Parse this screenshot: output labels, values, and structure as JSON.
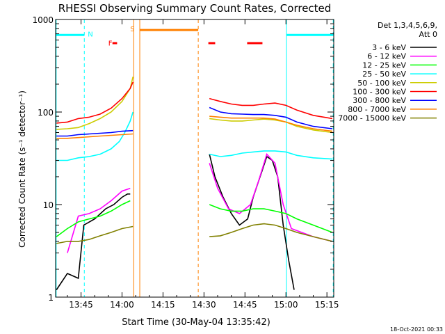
{
  "chart_data": {
    "type": "line",
    "title": "RHESSI Observing Summary Count Rates, Corrected",
    "xlabel": "Start Time (30-May-04 13:35:42)",
    "ylabel": "Corrected Count Rate (s⁻¹ detector⁻¹)",
    "yscale": "log",
    "xlim_min": [
      35.7,
      137.5
    ],
    "ylim": [
      1,
      1000
    ],
    "xticks": [
      {
        "label": "13:45",
        "x": 45
      },
      {
        "label": "14:00",
        "x": 60
      },
      {
        "label": "14:15",
        "x": 75
      },
      {
        "label": "14:30",
        "x": 90
      },
      {
        "label": "14:45",
        "x": 105
      },
      {
        "label": "15:00",
        "x": 120
      },
      {
        "label": "15:15",
        "x": 135
      }
    ],
    "yticks": [
      {
        "label": "1",
        "value": 1
      },
      {
        "label": "10",
        "value": 10
      },
      {
        "label": "100",
        "value": 100
      },
      {
        "label": "1000",
        "value": 1000
      }
    ],
    "legend": {
      "title_line1": "Det 1,3,4,5,6,9,",
      "title_line2": "Att 0",
      "placement": "right"
    },
    "series": [
      {
        "name": "3 - 6 keV",
        "color": "#000000",
        "points": [
          [
            36,
            1.2
          ],
          [
            40,
            1.8
          ],
          [
            44,
            1.6
          ],
          [
            46,
            6
          ],
          [
            50,
            7
          ],
          [
            54,
            9
          ],
          [
            57,
            10
          ],
          [
            60,
            12
          ],
          [
            62,
            13
          ],
          [
            63,
            13
          ],
          [
            null,
            null
          ],
          [
            92,
            35
          ],
          [
            94,
            20
          ],
          [
            97,
            12
          ],
          [
            100,
            8
          ],
          [
            103,
            6
          ],
          [
            106,
            7
          ],
          [
            108,
            12
          ],
          [
            111,
            22
          ],
          [
            113,
            33
          ],
          [
            115,
            30
          ],
          [
            117,
            20
          ],
          [
            119,
            6
          ],
          [
            121,
            2.5
          ],
          [
            123,
            1.2
          ]
        ]
      },
      {
        "name": "6 - 12 keV",
        "color": "#ff00ff",
        "points": [
          [
            40,
            3
          ],
          [
            44,
            7.5
          ],
          [
            48,
            8
          ],
          [
            52,
            9
          ],
          [
            56,
            11
          ],
          [
            60,
            14
          ],
          [
            63,
            15
          ],
          [
            null,
            null
          ],
          [
            92,
            28
          ],
          [
            95,
            15
          ],
          [
            99,
            9
          ],
          [
            103,
            8
          ],
          [
            107,
            10
          ],
          [
            110,
            18
          ],
          [
            113,
            35
          ],
          [
            116,
            28
          ],
          [
            119,
            10
          ],
          [
            122,
            5.5
          ],
          [
            130,
            4.5
          ],
          [
            137,
            4
          ]
        ]
      },
      {
        "name": "12 - 25 keV",
        "color": "#00ff00",
        "points": [
          [
            36,
            4.5
          ],
          [
            40,
            5.5
          ],
          [
            44,
            6.5
          ],
          [
            48,
            7
          ],
          [
            52,
            7.5
          ],
          [
            56,
            8.5
          ],
          [
            60,
            10
          ],
          [
            63,
            11
          ],
          [
            null,
            null
          ],
          [
            92,
            10
          ],
          [
            96,
            9
          ],
          [
            100,
            8.5
          ],
          [
            104,
            8.5
          ],
          [
            108,
            9
          ],
          [
            112,
            9
          ],
          [
            116,
            8.5
          ],
          [
            120,
            8
          ],
          [
            124,
            7
          ],
          [
            130,
            6
          ],
          [
            137,
            5
          ]
        ]
      },
      {
        "name": "25 - 50 keV",
        "color": "#00ffff",
        "points": [
          [
            36,
            30
          ],
          [
            40,
            30
          ],
          [
            44,
            32
          ],
          [
            48,
            33
          ],
          [
            52,
            35
          ],
          [
            56,
            40
          ],
          [
            59,
            48
          ],
          [
            61,
            60
          ],
          [
            63,
            80
          ],
          [
            64,
            100
          ],
          [
            null,
            null
          ],
          [
            92,
            35
          ],
          [
            96,
            33
          ],
          [
            100,
            34
          ],
          [
            104,
            36
          ],
          [
            108,
            37
          ],
          [
            112,
            38
          ],
          [
            116,
            38
          ],
          [
            120,
            37
          ],
          [
            124,
            34
          ],
          [
            130,
            32
          ],
          [
            137,
            31
          ]
        ]
      },
      {
        "name": "50 - 100 keV",
        "color": "#cccc00",
        "points": [
          [
            36,
            65
          ],
          [
            40,
            66
          ],
          [
            44,
            68
          ],
          [
            48,
            75
          ],
          [
            52,
            85
          ],
          [
            56,
            100
          ],
          [
            60,
            130
          ],
          [
            63,
            180
          ],
          [
            64,
            240
          ],
          [
            null,
            null
          ],
          [
            92,
            85
          ],
          [
            96,
            82
          ],
          [
            100,
            80
          ],
          [
            104,
            80
          ],
          [
            108,
            82
          ],
          [
            112,
            84
          ],
          [
            116,
            82
          ],
          [
            120,
            78
          ],
          [
            124,
            70
          ],
          [
            130,
            64
          ],
          [
            137,
            60
          ]
        ]
      },
      {
        "name": "100 - 300 keV",
        "color": "#ff0000",
        "points": [
          [
            36,
            76
          ],
          [
            40,
            78
          ],
          [
            44,
            85
          ],
          [
            48,
            88
          ],
          [
            52,
            95
          ],
          [
            56,
            110
          ],
          [
            60,
            140
          ],
          [
            63,
            180
          ],
          [
            64,
            210
          ],
          [
            null,
            null
          ],
          [
            92,
            140
          ],
          [
            96,
            130
          ],
          [
            100,
            122
          ],
          [
            104,
            118
          ],
          [
            108,
            118
          ],
          [
            112,
            122
          ],
          [
            116,
            125
          ],
          [
            120,
            118
          ],
          [
            124,
            105
          ],
          [
            130,
            92
          ],
          [
            137,
            85
          ]
        ]
      },
      {
        "name": "300 - 800 keV",
        "color": "#0000ff",
        "points": [
          [
            36,
            55
          ],
          [
            40,
            55
          ],
          [
            44,
            57
          ],
          [
            48,
            58
          ],
          [
            52,
            59
          ],
          [
            56,
            60
          ],
          [
            60,
            62
          ],
          [
            64,
            63
          ],
          [
            null,
            null
          ],
          [
            92,
            112
          ],
          [
            96,
            100
          ],
          [
            100,
            96
          ],
          [
            104,
            95
          ],
          [
            108,
            94
          ],
          [
            112,
            94
          ],
          [
            116,
            92
          ],
          [
            120,
            88
          ],
          [
            124,
            78
          ],
          [
            130,
            70
          ],
          [
            137,
            66
          ]
        ]
      },
      {
        "name": "800 - 7000 keV",
        "color": "#ff8000",
        "points": [
          [
            36,
            52
          ],
          [
            40,
            52
          ],
          [
            44,
            53
          ],
          [
            48,
            54
          ],
          [
            52,
            55
          ],
          [
            56,
            56
          ],
          [
            60,
            57
          ],
          [
            64,
            58
          ],
          [
            null,
            null
          ],
          [
            92,
            90
          ],
          [
            96,
            88
          ],
          [
            100,
            86
          ],
          [
            104,
            86
          ],
          [
            108,
            86
          ],
          [
            112,
            86
          ],
          [
            116,
            84
          ],
          [
            120,
            78
          ],
          [
            124,
            72
          ],
          [
            130,
            66
          ],
          [
            137,
            62
          ]
        ]
      },
      {
        "name": "7000 - 15000 keV",
        "color": "#808000",
        "points": [
          [
            36,
            3.8
          ],
          [
            40,
            4
          ],
          [
            44,
            4
          ],
          [
            48,
            4.2
          ],
          [
            52,
            4.6
          ],
          [
            56,
            5
          ],
          [
            60,
            5.5
          ],
          [
            64,
            5.8
          ],
          [
            null,
            null
          ],
          [
            92,
            4.5
          ],
          [
            96,
            4.6
          ],
          [
            100,
            5
          ],
          [
            104,
            5.5
          ],
          [
            108,
            6
          ],
          [
            112,
            6.2
          ],
          [
            116,
            6
          ],
          [
            120,
            5.5
          ],
          [
            124,
            5
          ],
          [
            130,
            4.5
          ],
          [
            137,
            4
          ]
        ]
      }
    ],
    "annotations": {
      "night": {
        "label": "N",
        "color": "#00ffff",
        "solid_lines": [
          35.9,
          120.2
        ],
        "dashed_lines": [
          46.2,
          137.3
        ],
        "bars": [
          [
            35.9,
            46.2
          ],
          [
            120.2,
            137.3
          ]
        ],
        "bar_value": 680
      },
      "flare": {
        "label": "F",
        "color": "#ff0000",
        "label_x": 55.7,
        "label_value": 560,
        "bars": [
          [
            56.5,
            58.2
          ],
          [
            91.6,
            94.1
          ],
          [
            105.8,
            111.4
          ]
        ],
        "bar_value": 555
      },
      "saa": {
        "label": "S",
        "color": "#ff8000",
        "label_x": 63.8,
        "label_value": 800,
        "solid_lines": [
          64.3,
          66.5
        ],
        "dashed_lines": [
          87.9
        ],
        "bars": [
          [
            66.5,
            87.9
          ]
        ],
        "bar_value": 770
      }
    }
  },
  "footer": {
    "date_label": "18-Oct-2021 00:33"
  }
}
